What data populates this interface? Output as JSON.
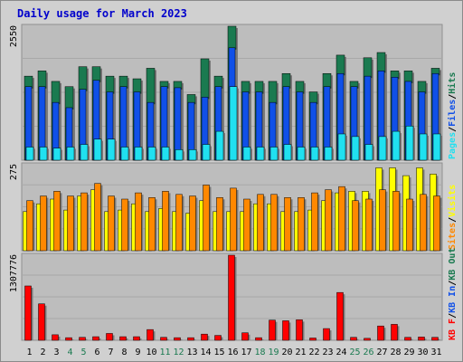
{
  "chart_data": {
    "type": "bar",
    "title": "Daily usage for March 2023",
    "days": [
      "1",
      "2",
      "3",
      "4",
      "5",
      "6",
      "7",
      "8",
      "9",
      "10",
      "11",
      "12",
      "13",
      "14",
      "15",
      "16",
      "17",
      "18",
      "19",
      "20",
      "21",
      "22",
      "23",
      "24",
      "25",
      "26",
      "27",
      "28",
      "29",
      "30",
      "31"
    ],
    "weekend_days": [
      "4",
      "5",
      "11",
      "12",
      "18",
      "19",
      "25",
      "26"
    ],
    "panels": [
      {
        "key": "hits_files_pages",
        "max_label": "2550",
        "ymax": 2550,
        "series": [
          {
            "name": "Hits",
            "color": "#1a7a50",
            "values": [
              1600,
              1700,
              1500,
              1400,
              1780,
              1780,
              1600,
              1600,
              1550,
              1750,
              1500,
              1500,
              1250,
              1930,
              1600,
              2550,
              1500,
              1500,
              1500,
              1650,
              1500,
              1300,
              1650,
              2000,
              1500,
              1950,
              2050,
              1700,
              1700,
              1500,
              1750
            ]
          },
          {
            "name": "Files",
            "color": "#1050e8",
            "values": [
              1400,
              1400,
              1100,
              1000,
              1350,
              1520,
              1300,
              1400,
              1300,
              1100,
              1400,
              1380,
              1100,
              1200,
              1400,
              2140,
              1300,
              1300,
              1100,
              1400,
              1300,
              1100,
              1400,
              1650,
              1400,
              1600,
              1700,
              1580,
              1500,
              1300,
              1650
            ]
          },
          {
            "name": "Pages",
            "color": "#20e0f0",
            "values": [
              250,
              250,
              230,
              250,
              300,
              400,
              400,
              250,
              250,
              250,
              250,
              200,
              200,
              300,
              550,
              1400,
              250,
              250,
              250,
              300,
              250,
              250,
              250,
              500,
              450,
              300,
              450,
              550,
              650,
              500,
              500
            ]
          }
        ],
        "labels": [
          "Pages",
          "Files",
          "Hits"
        ]
      },
      {
        "key": "visits_sites",
        "max_label": "275",
        "ymax": 275,
        "series": [
          {
            "name": "Visits",
            "color": "#ffff00",
            "values": [
              125,
              150,
              165,
              130,
              175,
              195,
              125,
              130,
              150,
              125,
              135,
              125,
              120,
              160,
              125,
              125,
              125,
              150,
              150,
              125,
              125,
              130,
              160,
              185,
              190,
              190,
              265,
              265,
              240,
              265,
              245
            ]
          },
          {
            "name": "Sites",
            "color": "#ff8800",
            "values": [
              160,
              175,
              190,
              175,
              185,
              215,
              175,
              165,
              185,
              170,
              190,
              180,
              175,
              210,
              170,
              200,
              165,
              180,
              180,
              170,
              170,
              185,
              195,
              205,
              160,
              165,
              195,
              190,
              165,
              180,
              175
            ]
          }
        ],
        "labels": [
          "Sites",
          "Visits"
        ]
      },
      {
        "key": "kbf_kbin_kbout",
        "max_label": "1307776",
        "ymax": 1307776,
        "series": [
          {
            "name": "KB F",
            "color": "#ff0000",
            "values": [
              835000,
              560000,
              85000,
              40000,
              45000,
              55000,
              105000,
              55000,
              55000,
              165000,
              45000,
              40000,
              40000,
              95000,
              75000,
              1307776,
              115000,
              40000,
              310000,
              300000,
              315000,
              35000,
              180000,
              735000,
              45000,
              30000,
              220000,
              245000,
              45000,
              50000,
              45000
            ]
          }
        ],
        "labels": [
          "KB F",
          "KB In",
          "KB Out"
        ]
      }
    ]
  },
  "colors": {
    "panel_bg": "#bdbdbd",
    "frame_bg": "#d0d0d0",
    "title": "#0000cc",
    "weekday_label": "#000000",
    "weekend_label": "#1a7a50",
    "label_kb_in": "#1050e8",
    "label_kb_out": "#1a7a50"
  }
}
